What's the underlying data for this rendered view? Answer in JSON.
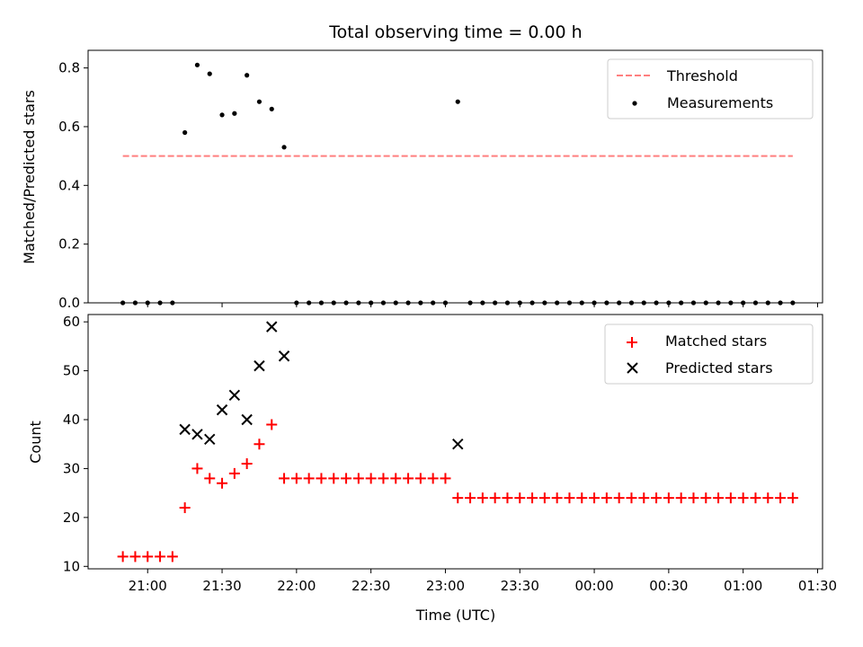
{
  "title": "Total observing time = 0.00 h",
  "chart_data": [
    {
      "type": "scatter",
      "ylabel": "Matched/Predicted stars",
      "ylim": [
        0,
        0.86
      ],
      "yticks": [
        "0.0",
        "0.2",
        "0.4",
        "0.6",
        "0.8"
      ],
      "threshold": {
        "name": "Threshold",
        "value": 0.5,
        "x_start": "20:50",
        "x_end": "01:20",
        "color": "#ff7f7f"
      },
      "series": [
        {
          "name": "Measurements",
          "color": "#000000",
          "x": [
            "20:50",
            "20:55",
            "21:00",
            "21:05",
            "21:10",
            "21:15",
            "21:20",
            "21:25",
            "21:30",
            "21:35",
            "21:40",
            "21:45",
            "21:50",
            "21:55",
            "22:00",
            "22:05",
            "22:10",
            "22:15",
            "22:20",
            "22:25",
            "22:30",
            "22:35",
            "22:40",
            "22:45",
            "22:50",
            "22:55",
            "23:00",
            "23:05",
            "23:10",
            "23:15",
            "23:20",
            "23:25",
            "23:30",
            "23:35",
            "23:40",
            "23:45",
            "23:50",
            "23:55",
            "00:00",
            "00:05",
            "00:10",
            "00:15",
            "00:20",
            "00:25",
            "00:30",
            "00:35",
            "00:40",
            "00:45",
            "00:50",
            "00:55",
            "01:00",
            "01:05",
            "01:10",
            "01:15",
            "01:20"
          ],
          "y": [
            0,
            0,
            0,
            0,
            0,
            0.58,
            0.81,
            0.78,
            0.64,
            0.645,
            0.775,
            0.685,
            0.66,
            0.53,
            0,
            0,
            0,
            0,
            0,
            0,
            0,
            0,
            0,
            0,
            0,
            0,
            0,
            0.685,
            0,
            0,
            0,
            0,
            0,
            0,
            0,
            0,
            0,
            0,
            0,
            0,
            0,
            0,
            0,
            0,
            0,
            0,
            0,
            0,
            0,
            0,
            0,
            0,
            0,
            0,
            0
          ]
        }
      ]
    },
    {
      "type": "scatter",
      "xlabel": "Time (UTC)",
      "ylabel": "Count",
      "ylim": [
        9.5,
        61.5
      ],
      "yticks": [
        "10",
        "20",
        "30",
        "40",
        "50",
        "60"
      ],
      "xticks": [
        "21:00",
        "21:30",
        "22:00",
        "22:30",
        "23:00",
        "23:30",
        "00:00",
        "00:30",
        "01:00",
        "01:30"
      ],
      "series": [
        {
          "name": "Matched stars",
          "marker": "plus",
          "color": "#ff0000",
          "x": [
            "20:50",
            "20:55",
            "21:00",
            "21:05",
            "21:10",
            "21:15",
            "21:20",
            "21:25",
            "21:30",
            "21:35",
            "21:40",
            "21:45",
            "21:50",
            "21:55",
            "22:00",
            "22:05",
            "22:10",
            "22:15",
            "22:20",
            "22:25",
            "22:30",
            "22:35",
            "22:40",
            "22:45",
            "22:50",
            "22:55",
            "23:00",
            "23:05",
            "23:10",
            "23:15",
            "23:20",
            "23:25",
            "23:30",
            "23:35",
            "23:40",
            "23:45",
            "23:50",
            "23:55",
            "00:00",
            "00:05",
            "00:10",
            "00:15",
            "00:20",
            "00:25",
            "00:30",
            "00:35",
            "00:40",
            "00:45",
            "00:50",
            "00:55",
            "01:00",
            "01:05",
            "01:10",
            "01:15",
            "01:20"
          ],
          "y": [
            12,
            12,
            12,
            12,
            12,
            22,
            30,
            28,
            27,
            29,
            31,
            35,
            39,
            28,
            28,
            28,
            28,
            28,
            28,
            28,
            28,
            28,
            28,
            28,
            28,
            28,
            28,
            24,
            24,
            24,
            24,
            24,
            24,
            24,
            24,
            24,
            24,
            24,
            24,
            24,
            24,
            24,
            24,
            24,
            24,
            24,
            24,
            24,
            24,
            24,
            24,
            24,
            24,
            24,
            24
          ]
        },
        {
          "name": "Predicted stars",
          "marker": "x",
          "color": "#000000",
          "x": [
            "21:15",
            "21:20",
            "21:25",
            "21:30",
            "21:35",
            "21:40",
            "21:45",
            "21:50",
            "21:55",
            "23:05"
          ],
          "y": [
            38,
            37,
            36,
            42,
            45,
            40,
            51,
            59,
            53,
            35
          ]
        }
      ]
    }
  ]
}
